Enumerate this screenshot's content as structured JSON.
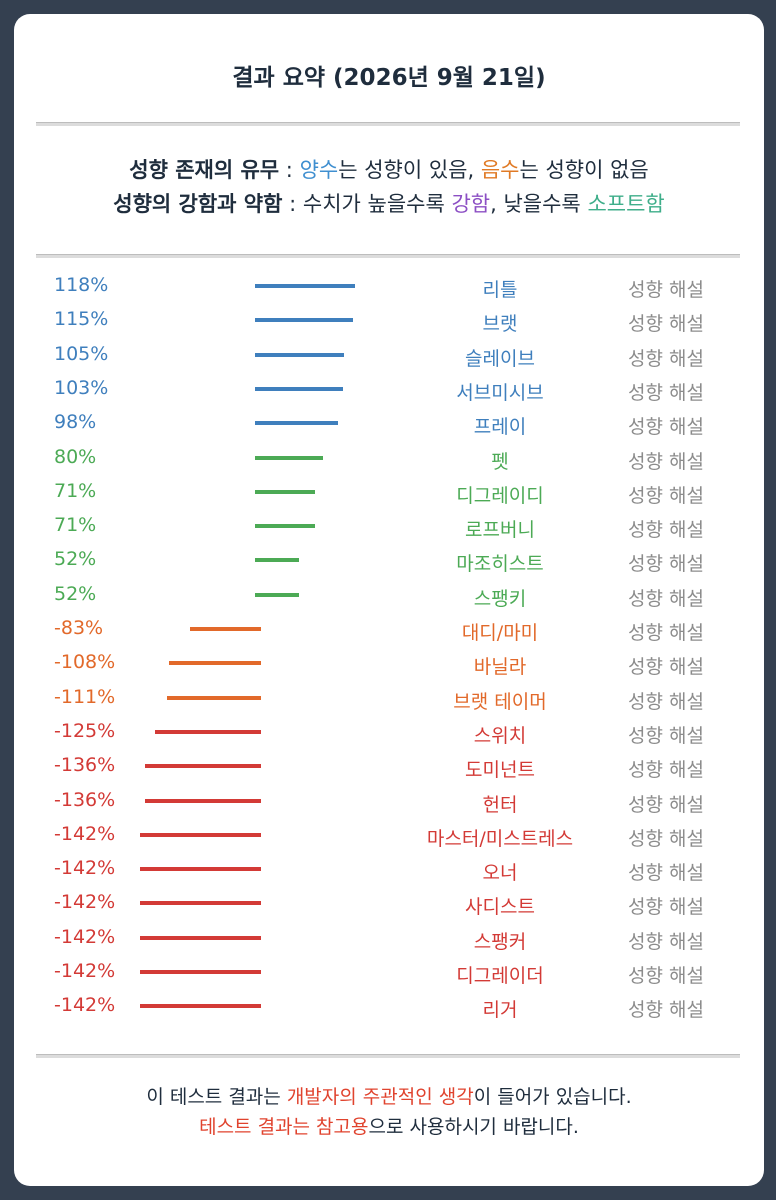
{
  "header": {
    "title": "결과 요약 (2026년 9월 21일)"
  },
  "legend": {
    "line1": {
      "prefix": "성향 존재의 유무",
      "sep": " : ",
      "pos_word": "양수",
      "pos_rest": "는 성향이 있음, ",
      "neg_word": "음수",
      "neg_rest": "는 성향이 없음"
    },
    "line2": {
      "prefix": "성향의 강함과 약함",
      "sep": " : 수치가 높을수록 ",
      "strong_word": "강함",
      "mid": ", 낮을수록 ",
      "soft_word": "소프트함"
    }
  },
  "colors": {
    "positive_strong": "#3f7fbd",
    "positive_soft": "#4caa55",
    "negative_orange": "#e2692a",
    "negative_red": "#d33a36",
    "legend_blue": "#3f8fd0",
    "legend_orange": "#e07a25",
    "legend_purple": "#8c4fc4",
    "legend_green": "#3fae8a",
    "footer_red": "#e0432e"
  },
  "chart_data": {
    "type": "bar",
    "orientation": "horizontal-diverging",
    "unit": "%",
    "categories": [
      "리틀",
      "브랫",
      "슬레이브",
      "서브미시브",
      "프레이",
      "펫",
      "디그레이디",
      "로프버니",
      "마조히스트",
      "스팽키",
      "대디/마미",
      "바닐라",
      "브랫 테이머",
      "스위치",
      "도미넌트",
      "헌터",
      "마스터/미스트레스",
      "오너",
      "사디스트",
      "스팽커",
      "디그레이더",
      "리거"
    ],
    "values": [
      118,
      115,
      105,
      103,
      98,
      80,
      71,
      71,
      52,
      52,
      -83,
      -108,
      -111,
      -125,
      -136,
      -136,
      -142,
      -142,
      -142,
      -142,
      -142,
      -142
    ],
    "labels": [
      "118%",
      "115%",
      "105%",
      "103%",
      "98%",
      "80%",
      "71%",
      "71%",
      "52%",
      "52%",
      "-83%",
      "-108%",
      "-111%",
      "-125%",
      "-136%",
      "-136%",
      "-142%",
      "-142%",
      "-142%",
      "-142%",
      "-142%",
      "-142%"
    ],
    "color_groups": [
      "positive_strong",
      "positive_strong",
      "positive_strong",
      "positive_strong",
      "positive_strong",
      "positive_soft",
      "positive_soft",
      "positive_soft",
      "positive_soft",
      "positive_soft",
      "negative_orange",
      "negative_orange",
      "negative_orange",
      "negative_red",
      "negative_red",
      "negative_red",
      "negative_red",
      "negative_red",
      "negative_red",
      "negative_red",
      "negative_red",
      "negative_red"
    ],
    "link_label": "성향 해설"
  },
  "footer": {
    "line1": {
      "pre": "이 테스트 결과는 ",
      "highlight": "개발자의 주관적인 생각",
      "post": "이 들어가 있습니다."
    },
    "line2": {
      "highlight": "테스트 결과는 참고용",
      "post": "으로 사용하시기 바랍니다."
    }
  }
}
